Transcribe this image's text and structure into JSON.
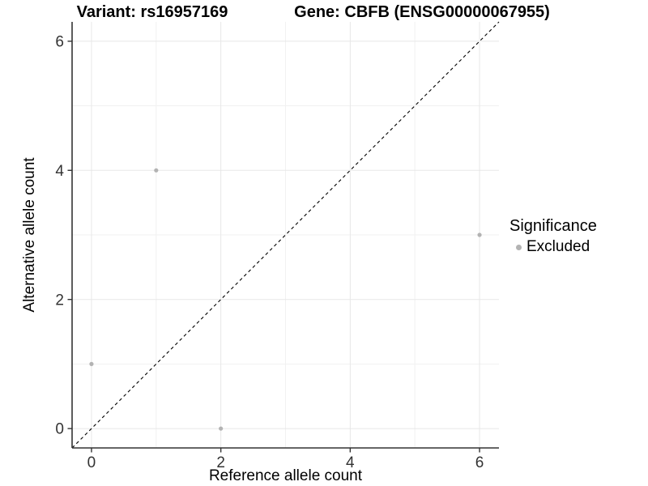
{
  "chart_data": {
    "type": "scatter",
    "titles": {
      "left": "Variant: rs16957169",
      "right": "Gene: CBFB (ENSG00000067955)"
    },
    "xlabel": "Reference allele count",
    "ylabel": "Alternative allele count",
    "xlim": [
      -0.3,
      6.3
    ],
    "ylim": [
      -0.3,
      6.3
    ],
    "x_major_ticks": [
      0,
      2,
      4,
      6
    ],
    "y_major_ticks": [
      0,
      2,
      4,
      6
    ],
    "x_minor_gridlines": [
      1,
      3,
      5
    ],
    "y_minor_gridlines": [
      1,
      3,
      5
    ],
    "grid": "major+minor",
    "series": [
      {
        "name": "Excluded",
        "color": "#b3b3b3",
        "points": [
          [
            0,
            1
          ],
          [
            1,
            4
          ],
          [
            2,
            0
          ],
          [
            6,
            3
          ]
        ]
      }
    ],
    "reference_line": {
      "type": "identity",
      "style": "dashed",
      "color": "#000000",
      "from": [
        -0.3,
        -0.3
      ],
      "to": [
        6.3,
        6.3
      ]
    },
    "legend": {
      "title": "Significance",
      "position": "right",
      "entries": [
        {
          "label": "Excluded",
          "color": "#b3b3b3"
        }
      ]
    },
    "style": {
      "axis_line_color": "#333333",
      "tick_text_color": "#333333",
      "grid_major_color": "#e7e7e7",
      "grid_minor_color": "#f1f1f1",
      "background": "#ffffff"
    }
  }
}
